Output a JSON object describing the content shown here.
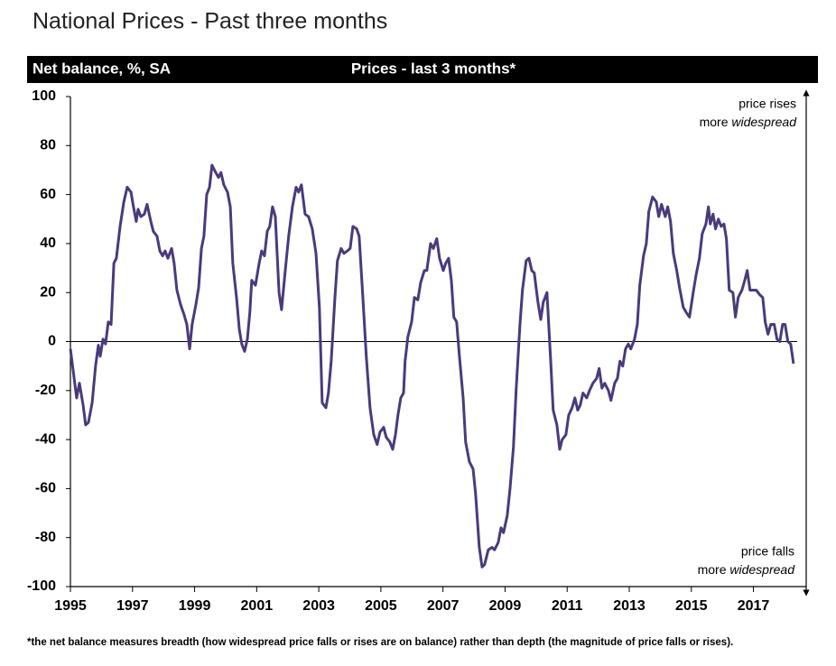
{
  "chart_data": {
    "type": "line",
    "title": "National Prices - Past three months",
    "header_left": "Net balance, %, SA",
    "header_center": "Prices - last 3 months*",
    "annotation_top": [
      "price rises",
      "more",
      "widespread"
    ],
    "annotation_bottom": [
      "price falls",
      "more",
      "widespread"
    ],
    "footnote": "*the net balance measures breadth (how widespread price falls or rises are on balance)  rather than depth (the magnitude of price falls or rises).",
    "color": "#4a3a7c",
    "xlim": [
      1995,
      2018.7
    ],
    "ylim": [
      -100,
      100
    ],
    "xticks": [
      1995,
      1997,
      1999,
      2001,
      2003,
      2005,
      2007,
      2009,
      2011,
      2013,
      2015,
      2017
    ],
    "yticks": [
      100,
      80,
      60,
      40,
      20,
      0,
      -20,
      -40,
      -60,
      -80,
      -100
    ],
    "x": [
      1995.0,
      1995.12,
      1995.2,
      1995.29,
      1995.41,
      1995.49,
      1995.58,
      1995.7,
      1995.81,
      1995.9,
      1995.96,
      1996.05,
      1996.13,
      1996.22,
      1996.31,
      1996.4,
      1996.48,
      1996.6,
      1996.72,
      1996.83,
      1996.95,
      1997.03,
      1997.12,
      1997.18,
      1997.27,
      1997.38,
      1997.47,
      1997.59,
      1997.67,
      1997.79,
      1997.88,
      1997.97,
      1998.05,
      1998.14,
      1998.26,
      1998.34,
      1998.43,
      1998.55,
      1998.66,
      1998.75,
      1998.84,
      1998.92,
      1999.04,
      1999.13,
      1999.22,
      1999.3,
      1999.39,
      1999.48,
      1999.56,
      1999.68,
      1999.77,
      1999.85,
      1999.94,
      2000.06,
      2000.15,
      2000.23,
      2000.35,
      2000.44,
      2000.52,
      2000.61,
      2000.7,
      2000.78,
      2000.84,
      2000.96,
      2001.08,
      2001.16,
      2001.25,
      2001.34,
      2001.42,
      2001.51,
      2001.6,
      2001.72,
      2001.8,
      2001.92,
      2002.03,
      2002.15,
      2002.27,
      2002.35,
      2002.44,
      2002.56,
      2002.67,
      2002.79,
      2002.91,
      2003.02,
      2003.11,
      2003.23,
      2003.31,
      2003.4,
      2003.52,
      2003.6,
      2003.72,
      2003.81,
      2003.92,
      2004.01,
      2004.1,
      2004.22,
      2004.3,
      2004.42,
      2004.53,
      2004.65,
      2004.77,
      2004.88,
      2004.97,
      2005.09,
      2005.17,
      2005.29,
      2005.38,
      2005.47,
      2005.55,
      2005.64,
      2005.73,
      2005.78,
      2005.87,
      2005.99,
      2006.08,
      2006.19,
      2006.28,
      2006.4,
      2006.48,
      2006.6,
      2006.69,
      2006.8,
      2006.89,
      2007.01,
      2007.09,
      2007.18,
      2007.27,
      2007.35,
      2007.44,
      2007.53,
      2007.65,
      2007.73,
      2007.85,
      2007.97,
      2008.05,
      2008.17,
      2008.26,
      2008.34,
      2008.46,
      2008.58,
      2008.66,
      2008.78,
      2008.87,
      2008.95,
      2009.07,
      2009.16,
      2009.27,
      2009.36,
      2009.48,
      2009.56,
      2009.68,
      2009.77,
      2009.86,
      2009.94,
      2010.06,
      2010.15,
      2010.23,
      2010.35,
      2010.47,
      2010.55,
      2010.67,
      2010.76,
      2010.84,
      2010.96,
      2011.05,
      2011.16,
      2011.25,
      2011.34,
      2011.42,
      2011.51,
      2011.63,
      2011.72,
      2011.83,
      2011.95,
      2012.03,
      2012.12,
      2012.21,
      2012.33,
      2012.41,
      2012.53,
      2012.62,
      2012.7,
      2012.79,
      2012.88,
      2012.97,
      2013.05,
      2013.17,
      2013.26,
      2013.34,
      2013.46,
      2013.55,
      2013.63,
      2013.75,
      2013.87,
      2013.95,
      2014.04,
      2014.16,
      2014.24,
      2014.33,
      2014.42,
      2014.53,
      2014.62,
      2014.74,
      2014.83,
      2014.94,
      2015.06,
      2015.15,
      2015.26,
      2015.35,
      2015.47,
      2015.55,
      2015.61,
      2015.7,
      2015.78,
      2015.87,
      2015.96,
      2016.05,
      2016.13,
      2016.22,
      2016.34,
      2016.42,
      2016.51,
      2016.63,
      2016.72,
      2016.8,
      2016.89,
      2017.01,
      2017.09,
      2017.21,
      2017.3,
      2017.38,
      2017.47,
      2017.56,
      2017.67,
      2017.76,
      2017.85,
      2017.94,
      2018.02,
      2018.11,
      2018.2,
      2018.29
    ],
    "values": [
      -3,
      -15,
      -23,
      -17,
      -26,
      -34,
      -33,
      -25,
      -10,
      -1.5,
      -6,
      1,
      -1,
      8,
      7,
      32,
      34,
      47,
      57,
      63,
      61,
      55,
      49,
      54,
      51,
      52,
      56,
      49,
      45,
      43,
      37,
      35,
      37,
      34,
      38,
      32,
      21,
      15,
      11,
      7,
      -3,
      7,
      15,
      22,
      38,
      43,
      60,
      63,
      72,
      69,
      67,
      69,
      64,
      61,
      55,
      32,
      18,
      5,
      -1,
      -4,
      1,
      12,
      25,
      23,
      32,
      37,
      35,
      45,
      47,
      55,
      51,
      20,
      13,
      29,
      43,
      55,
      63,
      61,
      64,
      52,
      51,
      46,
      36,
      14,
      -25,
      -27,
      -21,
      -8,
      18,
      33,
      38,
      36,
      37,
      38,
      47,
      46,
      43,
      18,
      -6,
      -27,
      -38,
      -42,
      -37,
      -35,
      -39,
      -41,
      -44,
      -38,
      -30,
      -23,
      -21,
      -8,
      2,
      8,
      18,
      17,
      24,
      29,
      29,
      40,
      38,
      42,
      34,
      29,
      32,
      34,
      25,
      10,
      8,
      -6,
      -23,
      -41,
      -49,
      -52,
      -62,
      -84,
      -92,
      -91,
      -85,
      -84,
      -85,
      -82,
      -76,
      -78,
      -71,
      -60,
      -43,
      -19,
      7,
      21,
      33,
      34,
      29,
      28,
      16,
      9,
      16,
      20,
      -8,
      -28,
      -34,
      -44,
      -40,
      -38,
      -30,
      -27,
      -23,
      -28,
      -26,
      -21,
      -23,
      -20,
      -17,
      -15,
      -11,
      -19,
      -17,
      -20,
      -24,
      -17,
      -15,
      -8,
      -10,
      -3,
      -1,
      -3,
      1,
      7,
      23,
      35,
      40,
      53,
      59,
      57,
      51,
      56,
      51,
      55,
      49,
      36,
      29,
      22,
      14,
      12,
      10,
      20,
      27,
      34,
      44,
      48,
      55,
      48,
      52,
      46,
      50,
      47,
      48,
      42,
      21,
      20,
      10,
      18,
      21,
      25,
      29,
      21,
      21,
      21,
      19,
      18,
      8,
      3,
      7,
      7,
      1,
      0,
      7,
      7,
      0,
      -1,
      -9
    ]
  }
}
